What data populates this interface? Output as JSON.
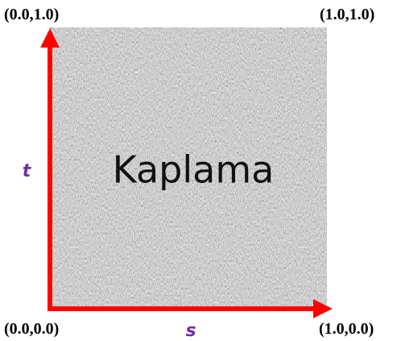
{
  "corners": {
    "top_left": "(0.0,1.0)",
    "top_right": "(1.0,1.0)",
    "bottom_left": "(0.0,0.0)",
    "bottom_right": "(1.0,0.0)"
  },
  "axes": {
    "t": "t",
    "s": "s"
  },
  "texture": {
    "label": "Kaplama"
  }
}
